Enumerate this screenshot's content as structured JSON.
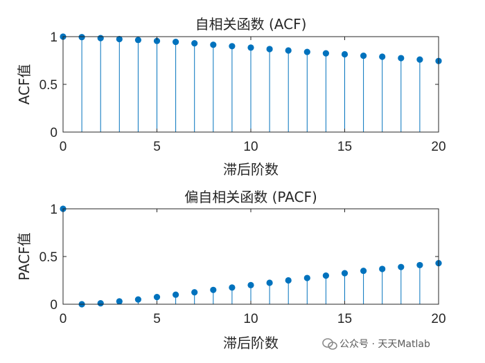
{
  "chart_data": [
    {
      "type": "stem",
      "title": "自相关函数 (ACF)",
      "xlabel": "滞后阶数",
      "ylabel": "ACF值",
      "xlim": [
        0,
        20
      ],
      "ylim": [
        0,
        1
      ],
      "xticks": [
        "0",
        "5",
        "10",
        "15",
        "20"
      ],
      "yticks": [
        "0",
        "0.5",
        "1"
      ],
      "grid": false,
      "series": [
        {
          "x": [
            0,
            1,
            2,
            3,
            4,
            5,
            6,
            7,
            8,
            9,
            10,
            11,
            12,
            13,
            14,
            15,
            16,
            17,
            18,
            19,
            20
          ],
          "values": [
            1.0,
            0.995,
            0.985,
            0.975,
            0.965,
            0.955,
            0.945,
            0.93,
            0.915,
            0.9,
            0.885,
            0.87,
            0.855,
            0.84,
            0.825,
            0.815,
            0.8,
            0.79,
            0.775,
            0.76,
            0.745
          ]
        }
      ]
    },
    {
      "type": "stem",
      "title": "偏自相关函数 (PACF)",
      "xlabel": "滞后阶数",
      "ylabel": "PACF值",
      "xlim": [
        0,
        20
      ],
      "ylim": [
        0,
        1
      ],
      "xticks": [
        "0",
        "5",
        "10",
        "15",
        "20"
      ],
      "yticks": [
        "0",
        "0.5",
        "1"
      ],
      "grid": false,
      "series": [
        {
          "x": [
            0,
            1,
            2,
            3,
            4,
            5,
            6,
            7,
            8,
            9,
            10,
            11,
            12,
            13,
            14,
            15,
            16,
            17,
            18,
            19,
            20
          ],
          "values": [
            1.0,
            0.0,
            0.01,
            0.03,
            0.05,
            0.075,
            0.1,
            0.125,
            0.15,
            0.175,
            0.2,
            0.225,
            0.25,
            0.275,
            0.3,
            0.325,
            0.35,
            0.37,
            0.39,
            0.41,
            0.43
          ]
        }
      ]
    }
  ],
  "colors": {
    "stem": "#0072BD",
    "axis": "#262626"
  },
  "watermark": {
    "icon": "wechat-icon",
    "text": "公众号 · 天天Matlab"
  }
}
